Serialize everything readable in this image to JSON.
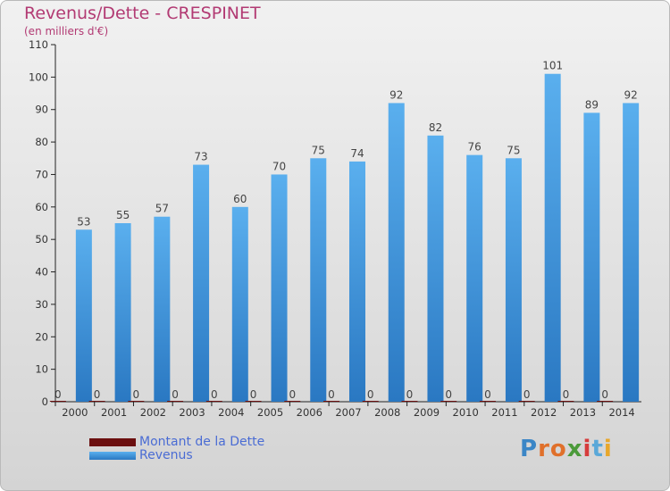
{
  "title": "Revenus/Dette - CRESPINET",
  "subtitle": "(en milliers d'€)",
  "colors": {
    "debt": "#6b0f0f",
    "revenue": "#4aa3e8",
    "title": "#b23a73",
    "legend_text": "#4a6cd4"
  },
  "logo": {
    "text": "Proxiti"
  },
  "chart_data": {
    "type": "bar",
    "categories": [
      "2000",
      "2001",
      "2002",
      "2003",
      "2004",
      "2005",
      "2006",
      "2007",
      "2008",
      "2009",
      "2010",
      "2011",
      "2012",
      "2013",
      "2014"
    ],
    "series": [
      {
        "name": "Montant de la Dette",
        "values": [
          0,
          0,
          0,
          0,
          0,
          0,
          0,
          0,
          0,
          0,
          0,
          0,
          0,
          0,
          0
        ]
      },
      {
        "name": "Revenus",
        "values": [
          53,
          55,
          57,
          73,
          60,
          70,
          75,
          74,
          92,
          82,
          76,
          75,
          101,
          89,
          92
        ]
      }
    ],
    "ylim": [
      0,
      110
    ],
    "yticks": [
      0,
      10,
      20,
      30,
      40,
      50,
      60,
      70,
      80,
      90,
      100,
      110
    ],
    "grid": false,
    "legend": "bottom-left"
  }
}
